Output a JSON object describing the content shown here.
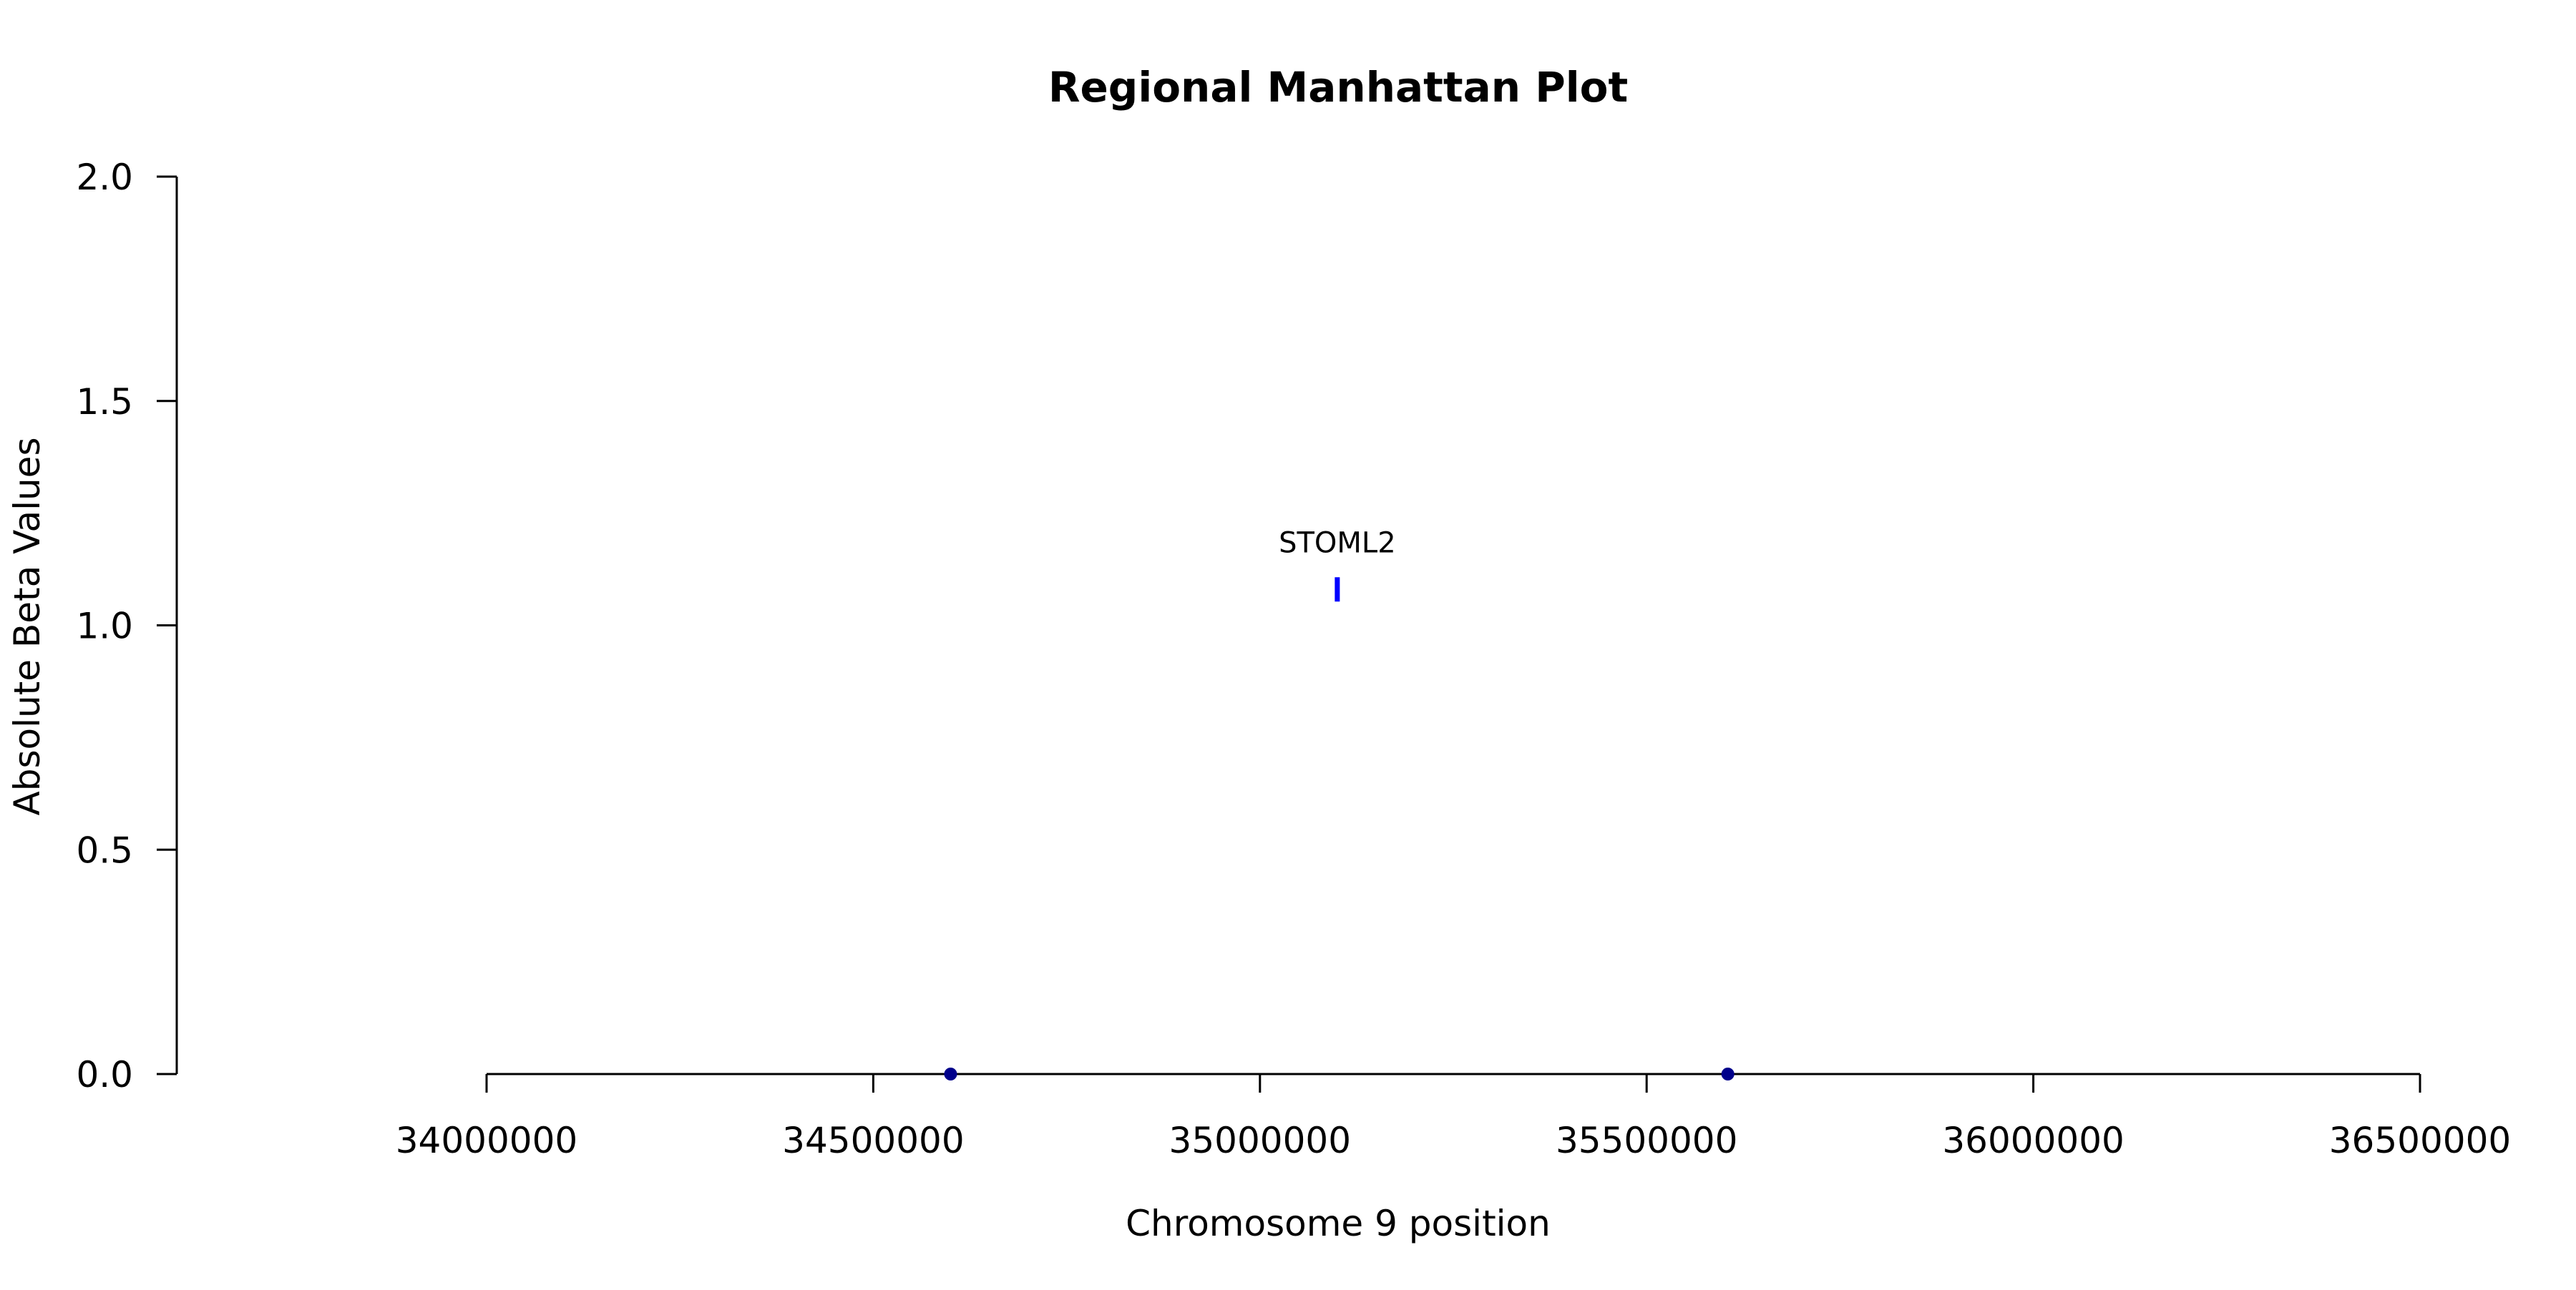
{
  "chart_data": {
    "type": "scatter",
    "title": "Regional Manhattan Plot",
    "xlabel": "Chromosome 9 position",
    "ylabel": "Absolute Beta Values",
    "xlim": [
      34000000,
      36500000
    ],
    "ylim": [
      0,
      2
    ],
    "xticks": [
      34000000,
      34500000,
      35000000,
      35500000,
      36000000,
      36500000
    ],
    "xtick_labels": [
      "34000000",
      "34500000",
      "35000000",
      "35500000",
      "36000000",
      "36500000"
    ],
    "yticks": [
      0,
      0.5,
      1,
      1.5,
      2
    ],
    "ytick_labels": [
      "0.0",
      "0.5",
      "1.0",
      "1.5",
      "2.0"
    ],
    "grid": false,
    "points": [
      {
        "x": 34600000,
        "y": 0,
        "color": "#00008b"
      },
      {
        "x": 35605000,
        "y": 0,
        "color": "#00008b"
      }
    ],
    "gene_markers": [
      {
        "x": 35100000,
        "y": 1.08,
        "label": "STOML2",
        "color": "#0000ff"
      }
    ]
  }
}
